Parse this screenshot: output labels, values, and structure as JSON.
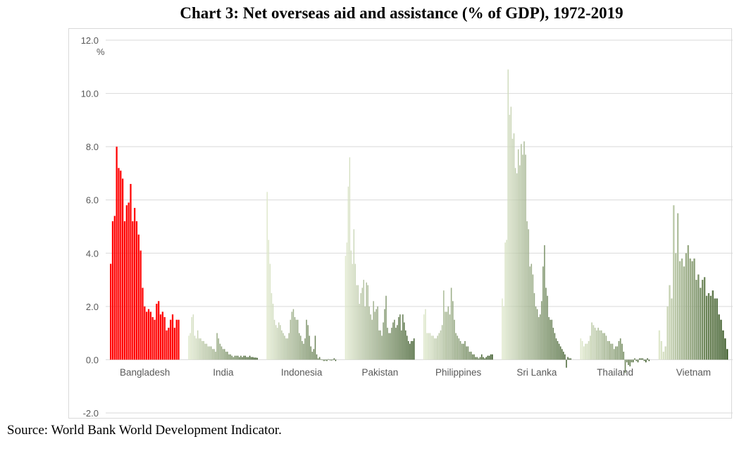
{
  "chart_data": {
    "type": "bar",
    "title": "Chart 3: Net overseas aid and assistance (% of GDP), 1972-2019",
    "source": "Source: World Bank World Development Indicator.",
    "ylabel": "%",
    "ylim": [
      -2.0,
      12.0
    ],
    "yticks": [
      "12.0",
      "10.0",
      "8.0",
      "6.0",
      "4.0",
      "2.0",
      "0.0",
      "-2.0"
    ],
    "grid": true,
    "years": "1972-2019",
    "highlight_color": "#ff0000",
    "gradient_light": "#dfe8cc",
    "gradient_dark": "#375623",
    "series": [
      {
        "name": "Bangladesh",
        "highlight": true,
        "values": [
          3.6,
          5.2,
          5.4,
          8.0,
          7.2,
          7.1,
          6.8,
          5.2,
          5.8,
          5.9,
          6.6,
          5.2,
          5.7,
          5.2,
          4.7,
          4.1,
          2.7,
          2.0,
          1.8,
          1.9,
          1.8,
          1.6,
          1.5,
          2.1,
          2.2,
          1.7,
          1.8,
          1.6,
          1.1,
          1.2,
          1.5,
          1.7,
          1.2,
          1.5,
          1.5
        ]
      },
      {
        "name": "India",
        "values": [
          0.9,
          1.0,
          1.6,
          1.7,
          0.9,
          0.8,
          1.1,
          0.8,
          0.8,
          0.7,
          0.7,
          0.6,
          0.6,
          0.5,
          0.5,
          0.5,
          0.4,
          0.4,
          0.3,
          1.0,
          0.8,
          0.6,
          0.5,
          0.4,
          0.4,
          0.3,
          0.3,
          0.2,
          0.2,
          0.15,
          0.1,
          0.15,
          0.15,
          0.15,
          0.1,
          0.15,
          0.1,
          0.15,
          0.15,
          0.1,
          0.1,
          0.15,
          0.1,
          0.1,
          0.08,
          0.08,
          0.07
        ]
      },
      {
        "name": "Indonesia",
        "values": [
          6.3,
          4.5,
          3.6,
          2.5,
          2.1,
          1.5,
          1.3,
          1.2,
          1.4,
          1.3,
          1.1,
          1.0,
          0.9,
          0.8,
          0.8,
          1.0,
          1.5,
          1.8,
          1.9,
          1.6,
          1.5,
          1.5,
          1.0,
          0.9,
          0.7,
          0.6,
          0.8,
          1.5,
          1.3,
          0.9,
          0.5,
          0.3,
          0.4,
          0.9,
          0.2,
          0.05,
          0.1,
          0.02,
          -0.02,
          -0.05,
          -0.03,
          -0.05,
          0.02,
          -0.02,
          -0.03,
          -0.02,
          0.05,
          -0.05
        ]
      },
      {
        "name": "Pakistan",
        "values": [
          3.9,
          4.4,
          6.5,
          7.6,
          4.1,
          3.6,
          4.9,
          3.6,
          2.8,
          2.8,
          2.1,
          2.5,
          2.7,
          3.0,
          2.0,
          2.9,
          2.8,
          2.0,
          1.7,
          1.5,
          2.2,
          1.8,
          1.9,
          2.0,
          1.1,
          1.1,
          0.9,
          1.4,
          1.9,
          2.4,
          1.2,
          1.0,
          1.0,
          1.2,
          1.4,
          1.5,
          1.2,
          1.3,
          1.6,
          1.7,
          1.1,
          1.7,
          1.4,
          1.1,
          0.9,
          0.7,
          0.6,
          0.7,
          0.7,
          0.8
        ]
      },
      {
        "name": "Philippines",
        "values": [
          1.7,
          1.9,
          1.0,
          1.0,
          1.0,
          0.9,
          0.9,
          0.8,
          0.8,
          0.9,
          1.0,
          1.1,
          1.3,
          2.6,
          1.8,
          1.8,
          2.0,
          1.7,
          2.7,
          2.2,
          1.5,
          1.0,
          0.9,
          0.8,
          0.7,
          0.6,
          0.6,
          0.7,
          0.5,
          0.5,
          0.3,
          0.3,
          0.2,
          0.2,
          0.1,
          0.1,
          0.05,
          0.1,
          0.2,
          0.1,
          0.05,
          0.1,
          0.15,
          0.15,
          0.2,
          0.2
        ]
      },
      {
        "name": "Sri Lanka",
        "values": [
          2.3,
          2.0,
          4.4,
          4.5,
          10.9,
          9.2,
          9.5,
          8.3,
          8.5,
          7.2,
          7.0,
          7.9,
          7.3,
          8.1,
          7.7,
          8.2,
          7.7,
          5.2,
          4.9,
          3.5,
          3.6,
          3.2,
          2.5,
          2.0,
          1.9,
          1.6,
          1.7,
          2.2,
          3.5,
          4.3,
          2.7,
          2.4,
          1.6,
          1.5,
          1.5,
          1.2,
          1.0,
          0.8,
          0.7,
          0.6,
          0.5,
          0.4,
          0.3,
          0.2,
          -0.3,
          0.1,
          0.05,
          0.05
        ]
      },
      {
        "name": "Thailand",
        "values": [
          0.8,
          0.7,
          0.5,
          0.6,
          0.6,
          0.7,
          0.9,
          1.4,
          1.3,
          1.2,
          1.1,
          1.2,
          1.1,
          1.1,
          1.0,
          1.0,
          0.9,
          0.7,
          0.7,
          0.6,
          0.6,
          0.4,
          0.5,
          0.5,
          0.7,
          0.8,
          0.6,
          0.3,
          -0.5,
          -0.1,
          -0.2,
          -0.25,
          -0.1,
          -0.1,
          0.05,
          -0.05,
          -0.1,
          0.05,
          0.05,
          0.05,
          -0.05,
          -0.1,
          0.05,
          -0.05
        ]
      },
      {
        "name": "Vietnam",
        "values": [
          1.1,
          0.7,
          0.3,
          0.5,
          2.0,
          2.8,
          2.3,
          5.8,
          4.0,
          5.5,
          3.7,
          3.8,
          3.5,
          4.0,
          4.3,
          3.8,
          3.7,
          3.8,
          3.0,
          3.2,
          2.7,
          3.0,
          3.1,
          2.4,
          2.5,
          2.4,
          2.6,
          2.3,
          2.3,
          1.7,
          1.5,
          1.1,
          0.8,
          0.4
        ]
      }
    ]
  }
}
